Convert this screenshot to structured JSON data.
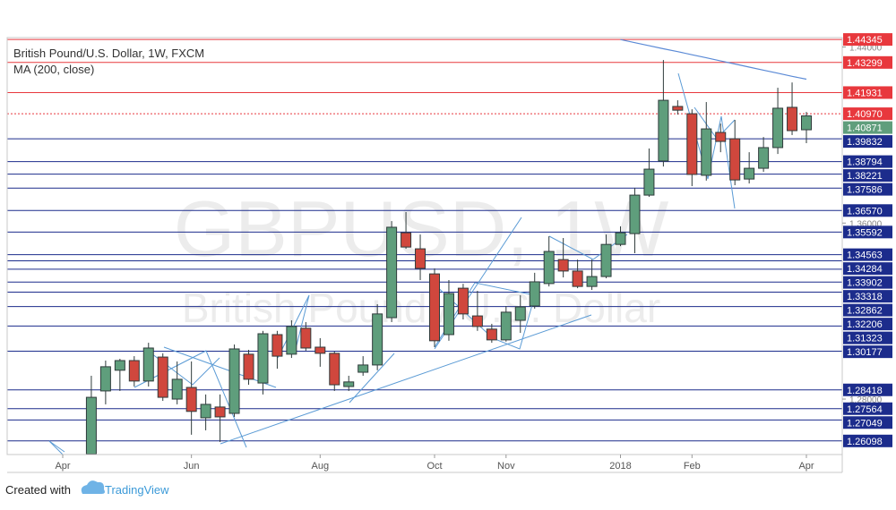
{
  "chart_data": {
    "type": "candlestick",
    "title": "British Pound/U.S. Dollar, 1W, FXCM",
    "watermark": "GBPUSD, 1W",
    "watermark_subtitle": "British Pound / U.S. Dollar",
    "categories": [
      "Apr",
      null,
      null,
      null,
      null,
      null,
      null,
      null,
      null,
      "Jun",
      null,
      null,
      null,
      null,
      null,
      null,
      null,
      null,
      "Aug",
      null,
      null,
      null,
      null,
      null,
      null,
      null,
      "Oct",
      null,
      null,
      null,
      null,
      "Nov",
      null,
      null,
      null,
      null,
      null,
      null,
      null,
      "2018",
      null,
      null,
      null,
      null,
      "Feb",
      null,
      null,
      null,
      null,
      null,
      null,
      null,
      "Apr"
    ],
    "open": [
      null,
      null,
      1.255,
      1.2837,
      1.2931,
      1.2975,
      1.2882,
      1.2991,
      1.28,
      1.2853,
      1.2715,
      1.2764,
      1.2735,
      1.3004,
      1.2873,
      1.3093,
      1.3004,
      1.3122,
      1.3036,
      1.3008,
      1.2857,
      1.2922,
      1.2955,
      1.317,
      1.3556,
      1.3483,
      1.3369,
      1.3093,
      1.3304,
      1.3178,
      1.3118,
      1.3069,
      1.3158,
      1.3223,
      1.3325,
      1.3434,
      1.3382,
      1.3312,
      1.3357,
      1.3503,
      1.3552,
      1.3727,
      1.3882,
      1.413,
      1.4097,
      1.3817,
      1.4012,
      1.3983,
      1.38,
      1.3849,
      1.3943,
      1.4126,
      1.4024
    ],
    "high": [
      null,
      null,
      1.2906,
      1.2975,
      1.2983,
      1.2995,
      1.3056,
      1.3008,
      1.2971,
      1.2971,
      1.2821,
      1.2821,
      1.3048,
      1.3024,
      1.311,
      1.311,
      1.3158,
      1.315,
      1.3077,
      1.3016,
      1.2906,
      1.2995,
      1.3231,
      1.3609,
      1.365,
      1.3548,
      1.3394,
      1.3341,
      1.3324,
      1.3292,
      1.3142,
      1.3223,
      1.3272,
      1.3374,
      1.354,
      1.3532,
      1.3434,
      1.3434,
      1.3548,
      1.3585,
      1.376,
      1.3939,
      1.4341,
      1.4158,
      1.4117,
      1.415,
      1.4052,
      1.4069,
      1.3922,
      1.3991,
      1.4215,
      1.4239,
      1.4105
    ],
    "low": [
      null,
      null,
      1.255,
      1.2776,
      1.2837,
      1.2857,
      1.2857,
      1.2792,
      1.2776,
      1.2638,
      1.2658,
      1.2605,
      1.2719,
      1.2865,
      1.2821,
      1.2938,
      1.2987,
      1.302,
      1.2947,
      1.2837,
      1.2837,
      1.2906,
      1.2931,
      1.315,
      1.3483,
      1.3341,
      1.3036,
      1.3065,
      1.3162,
      1.311,
      1.3056,
      1.3061,
      1.3101,
      1.3211,
      1.3312,
      1.3353,
      1.3304,
      1.3296,
      1.3349,
      1.3495,
      1.3463,
      1.3719,
      1.3857,
      1.4093,
      1.3768,
      1.3793,
      1.3922,
      1.3772,
      1.378,
      1.3833,
      1.3914,
      1.4,
      1.3963
    ],
    "close": [
      null,
      null,
      1.2808,
      1.2947,
      1.2975,
      1.2882,
      1.3032,
      1.2808,
      1.289,
      1.2744,
      1.2776,
      1.2719,
      1.3028,
      1.289,
      1.3097,
      1.2995,
      1.313,
      1.3032,
      1.3008,
      1.2865,
      1.2878,
      1.2955,
      1.3187,
      1.3581,
      1.3491,
      1.3394,
      1.3065,
      1.328,
      1.3187,
      1.313,
      1.3069,
      1.3195,
      1.3219,
      1.3333,
      1.3471,
      1.3382,
      1.3312,
      1.3357,
      1.3503,
      1.3556,
      1.3727,
      1.3845,
      1.4158,
      1.4113,
      1.3821,
      1.4028,
      1.3971,
      1.3796,
      1.3849,
      1.3943,
      1.4122,
      1.402,
      1.40871
    ],
    "up_color": "#5f9e7c",
    "down_color": "#d0473d",
    "ma": {
      "name": "MA (200, close)",
      "color": "#5b8ad6",
      "values": [
        null,
        null,
        null,
        null,
        null,
        null,
        null,
        null,
        null,
        null,
        null,
        null,
        null,
        null,
        null,
        null,
        null,
        null,
        null,
        null,
        null,
        null,
        null,
        null,
        null,
        null,
        null,
        null,
        null,
        null,
        null,
        null,
        null,
        null,
        null,
        null,
        null,
        null,
        null,
        1.4434,
        1.442,
        1.4406,
        1.4392,
        1.4379,
        1.4365,
        1.4351,
        1.4337,
        1.4323,
        1.4309,
        1.4295,
        1.4281,
        1.4267,
        1.4254
      ]
    },
    "ylim": [
      1.2548,
      1.4443
    ],
    "yticks": [
      {
        "value": 1.44,
        "label": "1.44000"
      },
      {
        "value": 1.36,
        "label": "1.36000"
      },
      {
        "value": 1.28,
        "label": "1.28000"
      }
    ],
    "levels": [
      {
        "value": 1.44345,
        "color": "#e8383d"
      },
      {
        "value": 1.43299,
        "color": "#e8383d"
      },
      {
        "value": 1.41931,
        "color": "#e8383d"
      },
      {
        "value": 1.4097,
        "label": "1.40970",
        "color": "#e8383d",
        "dashed": true
      },
      {
        "value": 1.39832,
        "color": "#1c2c8c"
      },
      {
        "value": 1.38794,
        "color": "#1c2c8c"
      },
      {
        "value": 1.38221,
        "color": "#1c2c8c"
      },
      {
        "value": 1.37586,
        "color": "#1c2c8c"
      },
      {
        "value": 1.3657,
        "label": "1.36570",
        "color": "#1c2c8c"
      },
      {
        "value": 1.35592,
        "color": "#1c2c8c"
      },
      {
        "value": 1.34563,
        "color": "#1c2c8c"
      },
      {
        "value": 1.34284,
        "color": "#1c2c8c"
      },
      {
        "value": 1.33902,
        "color": "#1c2c8c"
      },
      {
        "value": 1.33318,
        "color": "#1c2c8c"
      },
      {
        "value": 1.32862,
        "color": "#1c2c8c"
      },
      {
        "value": 1.32206,
        "color": "#1c2c8c"
      },
      {
        "value": 1.31323,
        "color": "#1c2c8c"
      },
      {
        "value": 1.30177,
        "color": "#1c2c8c"
      },
      {
        "value": 1.28418,
        "color": "#1c2c8c"
      },
      {
        "value": 1.27564,
        "color": "#1c2c8c"
      },
      {
        "value": 1.27049,
        "color": "#1c2c8c"
      },
      {
        "value": 1.26098,
        "color": "#1c2c8c"
      }
    ],
    "last_price": 1.40871,
    "last_price_color": "#5f9e7c"
  },
  "footer": {
    "prefix": "Created with",
    "brand": "TradingView"
  }
}
